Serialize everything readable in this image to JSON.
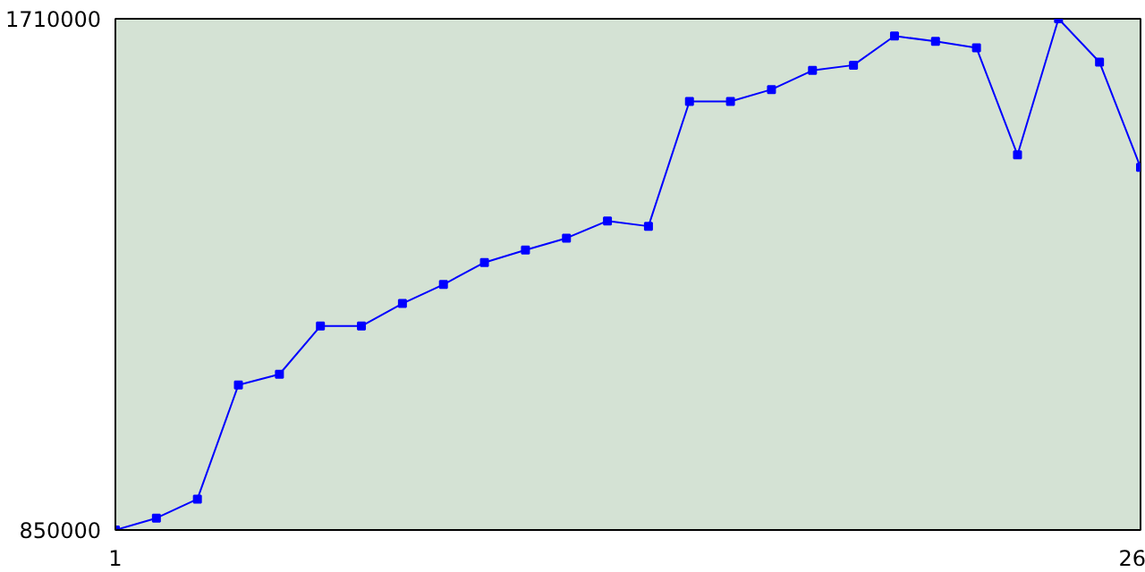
{
  "chart_data": {
    "type": "line",
    "x": [
      1,
      2,
      3,
      4,
      5,
      6,
      7,
      8,
      9,
      10,
      11,
      12,
      13,
      14,
      15,
      16,
      17,
      18,
      19,
      20,
      21,
      22,
      23,
      24,
      25,
      26
    ],
    "series": [
      {
        "color": "#0000ff",
        "values": [
          850000,
          870000,
          902000,
          1094000,
          1112000,
          1193000,
          1193000,
          1231000,
          1263000,
          1300000,
          1321000,
          1341000,
          1370000,
          1361000,
          1571000,
          1571000,
          1591000,
          1623000,
          1632000,
          1681000,
          1672000,
          1661000,
          1481000,
          1710000,
          1637000,
          1460000
        ]
      }
    ],
    "xlim": [
      1,
      26
    ],
    "ylim": [
      850000,
      1710000
    ],
    "xticks": [
      1,
      26
    ],
    "yticks": [
      850000,
      1710000
    ],
    "marker": "square",
    "line_style": "solid"
  }
}
